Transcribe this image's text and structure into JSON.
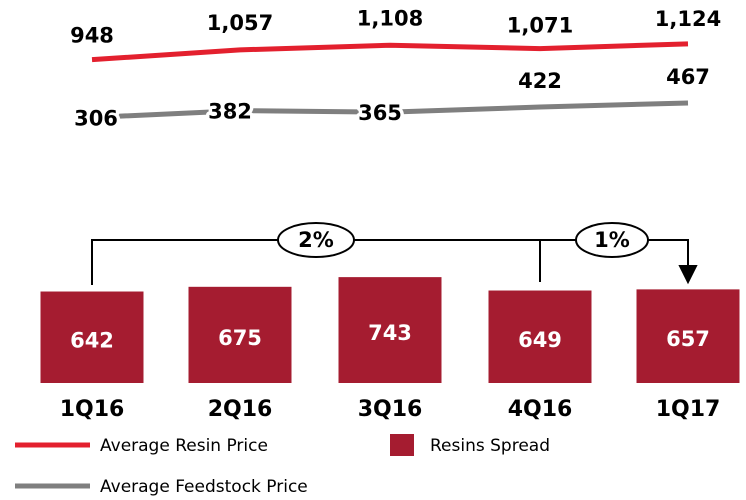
{
  "chart_data": {
    "type": "combo",
    "categories": [
      "1Q16",
      "2Q16",
      "3Q16",
      "4Q16",
      "1Q17"
    ],
    "series": [
      {
        "name": "Average Resin Price",
        "type": "line",
        "color": "#e3202e",
        "values": [
          948,
          1057,
          1108,
          1071,
          1124
        ],
        "value_labels": [
          "948",
          "1,057",
          "1,108",
          "1,071",
          "1,124"
        ]
      },
      {
        "name": "Average Feedstock Price",
        "type": "line",
        "color": "#7f7f7f",
        "values": [
          306,
          382,
          365,
          422,
          467
        ]
      },
      {
        "name": "Resins Spread",
        "type": "bar",
        "color": "#a51c30",
        "values": [
          642,
          675,
          743,
          649,
          657
        ]
      }
    ],
    "annotations": [
      "2%",
      "1%"
    ]
  }
}
